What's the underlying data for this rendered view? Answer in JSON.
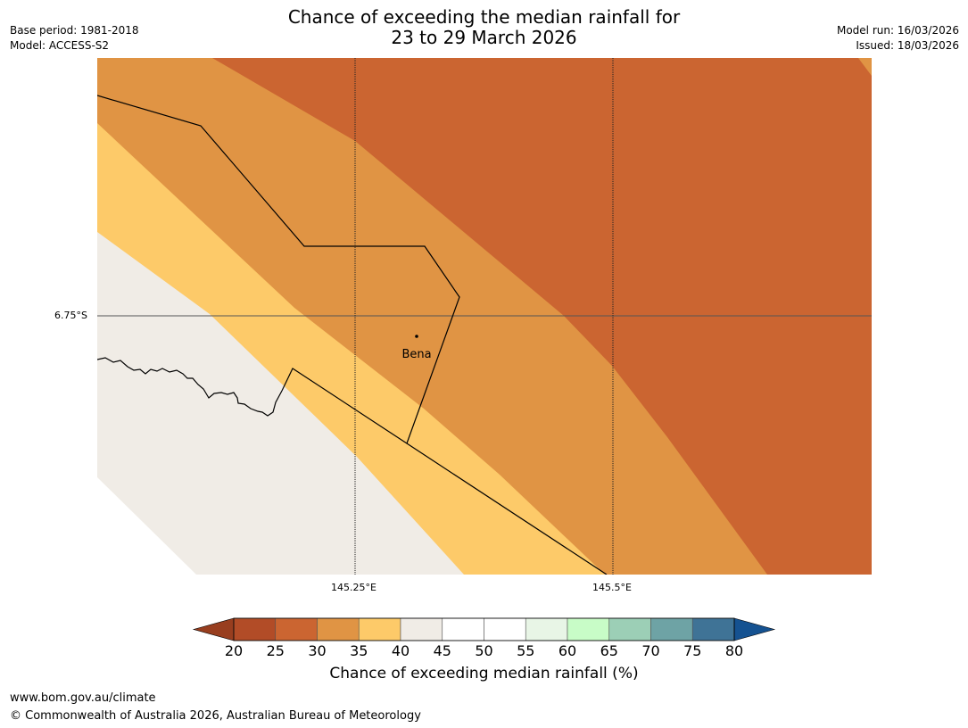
{
  "header": {
    "title_line1": "Chance of exceeding the median rainfall for",
    "title_line2": "23 to 29 March 2026",
    "base_period": "Base period: 1981-2018",
    "model": "Model: ACCESS-S2",
    "model_run": "Model run: 16/03/2026",
    "issued": "Issued: 18/03/2026"
  },
  "map": {
    "place_label": "Bena",
    "lat_label": "6.75°S",
    "lon_labels": [
      "145.25°E",
      "145.5°E"
    ]
  },
  "colorbar": {
    "title": "Chance of exceeding median rainfall (%)",
    "ticks": [
      "20",
      "25",
      "30",
      "35",
      "40",
      "45",
      "50",
      "55",
      "60",
      "65",
      "70",
      "75",
      "80"
    ],
    "colors": [
      "#983e1f",
      "#b24c27",
      "#cb6531",
      "#e09444",
      "#fdca69",
      "#f0ece6",
      "#ffffff",
      "#ffffff",
      "#e8f5e6",
      "#c8fcc7",
      "#9ccfb6",
      "#6ea3a5",
      "#3f7396",
      "#155291"
    ]
  },
  "footer": {
    "url": "www.bom.gov.au/climate",
    "copyright": "© Commonwealth of Australia 2026, Australian Bureau of Meteorology"
  }
}
